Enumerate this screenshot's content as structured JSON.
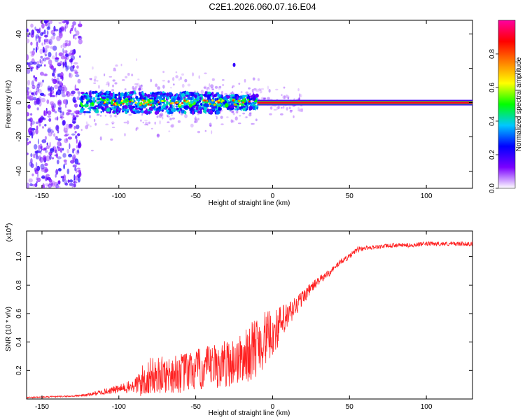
{
  "title": "C2E1.2026.060.07.16.E04",
  "chart_data": [
    {
      "type": "heatmap",
      "title": "C2E1.2026.060.07.16.E04",
      "xlabel": "Height of straight line (km)",
      "ylabel": "Frequency (Hz)",
      "xlim": [
        -160,
        130
      ],
      "ylim": [
        -50,
        48
      ],
      "xticks": [
        -150,
        -100,
        -50,
        0,
        50,
        100
      ],
      "yticks": [
        -40,
        -20,
        0,
        20,
        40
      ],
      "colorbar": {
        "label": "Normalized spectral amplitude",
        "range": [
          0,
          1
        ],
        "ticks": [
          "0.0",
          "0.2",
          "0.4",
          "0.6",
          "0.8"
        ],
        "colors": [
          "#ffffff",
          "#7b00ff",
          "#0000ff",
          "#00c8ff",
          "#00ff00",
          "#ffff00",
          "#ff8000",
          "#ff0000",
          "#ff00a0"
        ]
      },
      "features": {
        "noise_region_x": [
          -160,
          -125
        ],
        "dense_band_x": [
          -125,
          -10
        ],
        "dense_band_freq_halfwidth_hz": 6,
        "stable_line_x": [
          -10,
          130
        ],
        "stable_line_freq_hz": 0,
        "stable_line_amplitude": 0.9
      }
    },
    {
      "type": "line",
      "xlabel": "Height of straight line (km)",
      "ylabel": "SNR (10 * v/v)",
      "y_multiplier": "(x10",
      "y_multiplier_exp": "4",
      "xlim": [
        -160,
        130
      ],
      "ylim": [
        0,
        1.18
      ],
      "xticks": [
        -150,
        -100,
        -50,
        0,
        50,
        100
      ],
      "yticks": [
        "0.2",
        "0.4",
        "0.6",
        "0.8",
        "1.0"
      ],
      "series": [
        {
          "name": "SNR",
          "color": "#ff2020",
          "x": [
            -160,
            -130,
            -120,
            -110,
            -100,
            -90,
            -85,
            -80,
            -70,
            -60,
            -50,
            -40,
            -30,
            -20,
            -15,
            -10,
            -5,
            0,
            5,
            10,
            15,
            20,
            25,
            30,
            35,
            40,
            45,
            50,
            55,
            60,
            70,
            80,
            90,
            100,
            110,
            120,
            130
          ],
          "y": [
            0.01,
            0.02,
            0.03,
            0.05,
            0.07,
            0.09,
            0.12,
            0.16,
            0.17,
            0.18,
            0.2,
            0.22,
            0.25,
            0.28,
            0.32,
            0.38,
            0.42,
            0.46,
            0.52,
            0.58,
            0.65,
            0.72,
            0.78,
            0.83,
            0.87,
            0.92,
            0.97,
            1.0,
            1.05,
            1.06,
            1.07,
            1.08,
            1.08,
            1.09,
            1.09,
            1.09,
            1.09
          ],
          "noise_amplitude": [
            0.005,
            0.005,
            0.01,
            0.02,
            0.03,
            0.05,
            0.12,
            0.13,
            0.13,
            0.14,
            0.15,
            0.16,
            0.17,
            0.18,
            0.2,
            0.22,
            0.2,
            0.16,
            0.14,
            0.1,
            0.08,
            0.05,
            0.04,
            0.03,
            0.03,
            0.02,
            0.02,
            0.02,
            0.02,
            0.015,
            0.015,
            0.015,
            0.015,
            0.015,
            0.015,
            0.015,
            0.015
          ]
        }
      ]
    }
  ]
}
